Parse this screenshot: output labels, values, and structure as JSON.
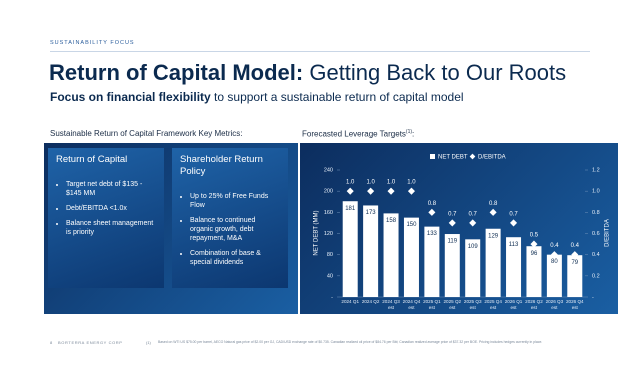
{
  "header": {
    "kicker": "SUSTAINABILITY FOCUS",
    "title_bold": "Return of Capital Model:",
    "title_rest": "Getting Back to Our Roots",
    "subtitle_bold": "Focus on financial flexibility",
    "subtitle_rest": "to support a sustainable return of capital model"
  },
  "left_section": {
    "heading": "Sustainable Return of Capital Framework Key Metrics:",
    "cards": [
      {
        "title": "Return of Capital",
        "bullets": [
          "Target net debt of $135 - $145 MM",
          "Debt/EBITDA <1.0x",
          "Balance sheet management is priority"
        ]
      },
      {
        "title": "Shareholder Return Policy",
        "bullets": [
          "Up to 25% of Free Funds Flow",
          "Balance to continued organic growth, debt repayment, M&A",
          "Combination of base & special dividends"
        ]
      }
    ]
  },
  "chart_data": {
    "type": "bar",
    "title": "Forecasted Leverage Targets",
    "title_note": "(1)",
    "title_suffix": ":",
    "y_label": "NET DEBT (MM)",
    "y2_label": "D/EBITDA",
    "categories": [
      "2024 Q1",
      "2024 Q2",
      "2024 Q3\nest",
      "2024 Q4\nest",
      "2025 Q1\nest",
      "2025 Q2\nest",
      "2025 Q3\nest",
      "2025 Q4\nest",
      "2026 Q1\nest",
      "2026 Q2\nest",
      "2026 Q3\nest",
      "2026 Q4\nest"
    ],
    "series": [
      {
        "name": "NET DEBT",
        "color": "#ffffff",
        "values": [
          181,
          173,
          158,
          150,
          133,
          119,
          109,
          129,
          113,
          96,
          80,
          79
        ]
      },
      {
        "name": "D/EBITDA",
        "color": "#ffffff",
        "axis": "y2",
        "values": [
          1.0,
          1.0,
          1.0,
          1.0,
          0.8,
          0.7,
          0.7,
          0.8,
          0.7,
          0.5,
          0.4,
          0.4
        ],
        "value_labels": [
          "1.0",
          "1.0",
          "1.0",
          "1.0",
          "0.8",
          "0.7",
          "0.7",
          "0.8",
          "0.7",
          "0.5",
          "0.4",
          "0.4"
        ]
      }
    ],
    "ylim": [
      0,
      240
    ],
    "yticks": [
      {
        "value": 0,
        "label": "-"
      },
      40,
      80,
      120,
      160,
      200,
      240
    ],
    "y2lim": [
      0,
      1.2
    ],
    "y2ticks": [
      {
        "value": 0,
        "label": "-"
      },
      0.2,
      0.4,
      0.6,
      0.8,
      {
        "value": 1,
        "label": "1.0"
      },
      1.2
    ]
  },
  "footer": {
    "page": "8",
    "company": "BORTERRA ENERGY CORP",
    "note_mark": "(1)",
    "note": "Based on WTI US $75.00 per barrel, AECO Natural gas price of $2.00 per GJ, CAD/USD exchange rate of $0.735. Canadian realized oil price of $84.76 per Bbl; Canadian realized average price of $37.32 per BOE. Pricing includes hedges currently in place."
  }
}
